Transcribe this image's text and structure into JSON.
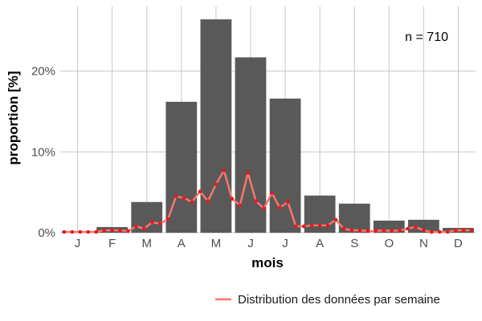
{
  "chart_data": {
    "type": "bar",
    "xlabel": "mois",
    "ylabel": "proportion [%]",
    "ylim": [
      0,
      28
    ],
    "yticks": [
      0,
      10,
      20
    ],
    "ytick_suffix": "%",
    "grid": true,
    "annotation": "n = 710",
    "legend_position": "bottom-right",
    "categories": [
      "J",
      "F",
      "M",
      "A",
      "M",
      "J",
      "J",
      "A",
      "S",
      "O",
      "N",
      "D"
    ],
    "values": [
      0.2,
      0.7,
      3.8,
      16.2,
      26.4,
      21.7,
      16.6,
      4.6,
      3.6,
      1.5,
      1.6,
      0.6
    ],
    "bar_color": "#595959",
    "line_series": {
      "name": "Distribution des données par semaine",
      "color": "#f8766d",
      "point_color": "#e41a1c",
      "x_week": [
        1,
        2,
        3,
        4,
        5,
        6,
        7,
        8,
        9,
        10,
        11,
        12,
        13,
        14,
        15,
        16,
        17,
        18,
        19,
        20,
        21,
        22,
        23,
        24,
        25,
        26,
        27,
        28,
        29,
        30,
        31,
        32,
        33,
        34,
        35,
        36,
        37,
        38,
        39,
        40,
        41,
        42,
        43,
        44,
        45,
        46,
        47,
        48,
        49,
        50,
        51,
        52
      ],
      "values": [
        0.1,
        0.1,
        0.1,
        0.1,
        0.1,
        0.3,
        0.3,
        0.3,
        0.2,
        0.8,
        0.5,
        1.3,
        1.1,
        1.7,
        4.5,
        4.3,
        3.8,
        5.1,
        3.9,
        6.0,
        7.7,
        4.2,
        3.4,
        7.4,
        3.9,
        3.0,
        4.9,
        3.1,
        3.8,
        0.8,
        0.8,
        0.9,
        0.9,
        0.9,
        1.6,
        0.5,
        0.3,
        0.3,
        0.2,
        0.2,
        0.3,
        0.2,
        0.3,
        0.5,
        0.7,
        0.3,
        0.1,
        0.1,
        0.1,
        0.3,
        0.3,
        0.3
      ]
    }
  }
}
